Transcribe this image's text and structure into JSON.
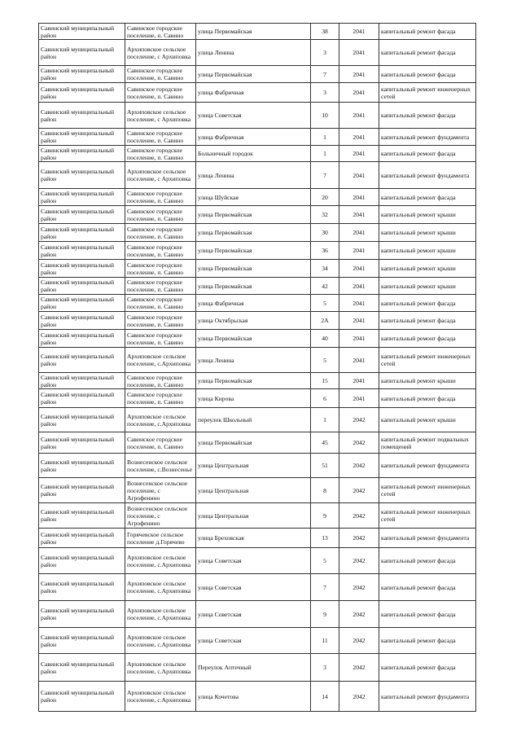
{
  "rows": [
    [
      "Савинский муниципальный район",
      "Савинское городское поселение, п. Савино",
      "улица Первомайская",
      "38",
      "2041",
      "капитальный ремонт фасада"
    ],
    [
      "Савинский муниципальный район",
      "Архиповское сельское поселение, с Архиповка",
      "улица Ленина",
      "3",
      "2041",
      "капитальный ремонт фасада"
    ],
    [
      "Савинский муниципальный район",
      "Савинское городское поселение, п. Савино",
      "улица Первомайская",
      "7",
      "2041",
      "капитальный ремонт фасада"
    ],
    [
      "Савинский муниципальный район",
      "Савинское городское поселение, п. Савино",
      "улица Фабричная",
      "3",
      "2041",
      "капитальный ремонт инженерных сетей"
    ],
    [
      "Савинский муниципальный район",
      "Архиповское сельское поселение, с Архиповка",
      "улица Советская",
      "10",
      "2041",
      "капитальный ремонт фасада"
    ],
    [
      "Савинский муниципальный район",
      "Савинское городское поселение, п. Савино",
      "улица Фабричная",
      "1",
      "2041",
      "капитальный ремонт фундамента"
    ],
    [
      "Савинский муниципальный район",
      "Савинское городское поселение, п. Савино",
      "Больничный городок",
      "1",
      "2041",
      "капитальный ремонт фасада"
    ],
    [
      "Савинский муниципальный район",
      "Архиповское сельское поселение, с Архиповка",
      "улица Ленина",
      "7",
      "2041",
      "капитальный ремонт фундамента"
    ],
    [
      "Савинский муниципальный район",
      "Савинское городское поселение, п. Савино",
      "улица Шуйская",
      "20",
      "2041",
      "капитальный ремонт фасада"
    ],
    [
      "Савинский муниципальный район",
      "Савинское городское поселение, п. Савино",
      "улица Первомайская",
      "32",
      "2041",
      "капитальный ремонт крыши"
    ],
    [
      "Савинский муниципальный район",
      "Савинское городское поселение, п. Савино",
      "улица Первомайская",
      "30",
      "2041",
      "капитальный ремонт крыши"
    ],
    [
      "Савинский муниципальный район",
      "Савинское городское поселение, п. Савино",
      "улица Первомайская",
      "36",
      "2041",
      "капитальный ремонт крыши"
    ],
    [
      "Савинский муниципальный район",
      "Савинское городское поселение, п. Савино",
      "улица Первомайская",
      "34",
      "2041",
      "капитальный ремонт крыши"
    ],
    [
      "Савинский муниципальный район",
      "Савинское городское поселение, п. Савино",
      "улица Первомайская",
      "42",
      "2041",
      "капитальный ремонт крыши"
    ],
    [
      "Савинский муниципальный район",
      "Савинское городское поселение, п. Савино",
      "улица Фабричная",
      "5",
      "2041",
      "капитальный ремонт фасада"
    ],
    [
      "Савинский муниципальный район",
      "Савинское городское поселение, п. Савино",
      "улица Октябрьская",
      "2А",
      "2041",
      "капитальный ремонт фасада"
    ],
    [
      "Савинский муниципальный район",
      "Савинское городское поселение, п. Савино",
      "улица Первомайская",
      "40",
      "2041",
      "капитальный ремонт фасада"
    ],
    [
      "Савинский муниципальный район",
      "Архиповское сельское поселение, с.Архиповка",
      "улица Ленина",
      "5",
      "2041",
      "капитальный ремонт инженерных сетей"
    ],
    [
      "Савинский муниципальный район",
      "Савинское городское поселение, п. Савино",
      "улица Первомайская",
      "15",
      "2041",
      "капитальный ремонт крыши"
    ],
    [
      "Савинский муниципальный район",
      "Савинское городское поселение, п. Савино",
      "улица Кирова",
      "6",
      "2041",
      "капитальный ремонт фасада"
    ],
    [
      "Савинский муниципальный район",
      "Архиповское сельское поселение, с.Архиповка",
      "переулок Школьный",
      "1",
      "2042",
      "капитальный ремонт крыши"
    ],
    [
      "Савинский муниципальный район",
      "Савинское городское поселение, п. Савино",
      "улица Первомайская",
      "45",
      "2042",
      "капитальный ремонт подвальных помещений"
    ],
    [
      "Савинский муниципальный район",
      "Вознесенское сельское поселение, с.Вознесенье",
      "улица Центральная",
      "51",
      "2042",
      "капитальный ремонт фундамента"
    ],
    [
      "Савинский муниципальный район",
      "Вознесенское сельское поселение, с Агрофенино",
      "улица Центральная",
      "8",
      "2042",
      "капитальный ремонт инженерных сетей"
    ],
    [
      "Савинский муниципальный район",
      "Вознесенское сельское поселение, с Агрофенино",
      "улица Центральная",
      "9",
      "2042",
      "капитальный ремонт инженерных сетей"
    ],
    [
      "Савинский муниципальный район",
      "Горячевское сельское поселение д.Горячево",
      "улица Бреховская",
      "13",
      "2042",
      "капитальный ремонт фундамента"
    ],
    [
      "Савинский муниципальный район",
      "Архиповское сельское поселение, с.Архиповка",
      "улица Советская",
      "5",
      "2042",
      "капитальный ремонт фасада"
    ],
    [
      "Савинский муниципальный район",
      "Архиповское сельское поселение, с.Архиповка",
      "улица Советская",
      "7",
      "2042",
      "капитальный ремонт фасада"
    ],
    [
      "Савинский муниципальный район",
      "Архиповское сельское поселение, с.Архиповка",
      "улица Советская",
      "9",
      "2042",
      "капитальный ремонт фасада"
    ],
    [
      "Савинский муниципальный район",
      "Архиповское сельское поселение, с.Архиповка",
      "улица Советская",
      "11",
      "2042",
      "капитальный ремонт фасада"
    ],
    [
      "Савинский муниципальный район",
      "Архиповское сельское поселение, с.Архиповка",
      "Переулок Аптечный",
      "3",
      "2042",
      "капитальный ремонт фасада"
    ],
    [
      "Савинский муниципальный район",
      "Архиповское сельское поселение, с.Архиповка",
      "улица Кочетова",
      "14",
      "2042",
      "капитальный ремонт фундамента"
    ]
  ]
}
